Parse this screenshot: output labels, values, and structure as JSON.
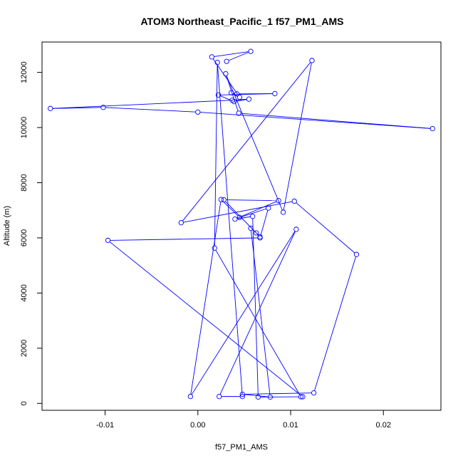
{
  "chart_data": {
    "type": "line",
    "title": "ATOM3 Northeast_Pacific_1 f57_PM1_AMS",
    "xlabel": "f57_PM1_AMS",
    "ylabel": "Altitude (m)",
    "xlim": [
      -0.0168,
      0.0262
    ],
    "ylim": [
      -250,
      13100
    ],
    "xticks": [
      -0.01,
      0.0,
      0.01,
      0.02
    ],
    "xtick_labels": [
      "-0.01",
      "0.00",
      "0.01",
      "0.02"
    ],
    "yticks": [
      0,
      2000,
      4000,
      6000,
      8000,
      10000,
      12000
    ],
    "ytick_labels": [
      "0",
      "2000",
      "4000",
      "6000",
      "8000",
      "10000",
      "12000"
    ],
    "grid": false,
    "line_color": "#0000ff",
    "marker": "open-circle",
    "series": [
      {
        "x": [
          0.0031,
          0.0057,
          0.0015,
          0.0045,
          0.0036,
          0.0042,
          0.0083,
          0.0022,
          0.0039,
          0.0055,
          0.0037,
          -0.0159,
          -0.0102,
          0.0,
          0.0253,
          0.0044,
          0.003,
          0.0092,
          0.0123,
          -0.0018,
          0.0104,
          0.0171,
          0.0125,
          0.0048,
          0.0078,
          0.0057,
          0.0063,
          0.0067,
          0.0028,
          0.0087,
          0.004,
          0.0059,
          0.0065,
          0.0111,
          0.0018,
          0.0021,
          0.0048,
          0.0023,
          0.0106,
          -0.0008,
          0.0025,
          0.0045,
          0.0076,
          0.0067,
          -0.0097,
          0.0113
        ],
        "y": [
          12400,
          12760,
          12560,
          11100,
          11260,
          11220,
          11230,
          11180,
          10940,
          11030,
          10990,
          10690,
          10730,
          10560,
          9960,
          10520,
          11950,
          6930,
          12430,
          6550,
          7330,
          5400,
          380,
          330,
          230,
          6350,
          6180,
          6040,
          7380,
          7350,
          6680,
          6780,
          230,
          240,
          5630,
          12360,
          250,
          250,
          6310,
          250,
          7390,
          6740,
          7080,
          6000,
          5910,
          240
        ]
      }
    ]
  }
}
